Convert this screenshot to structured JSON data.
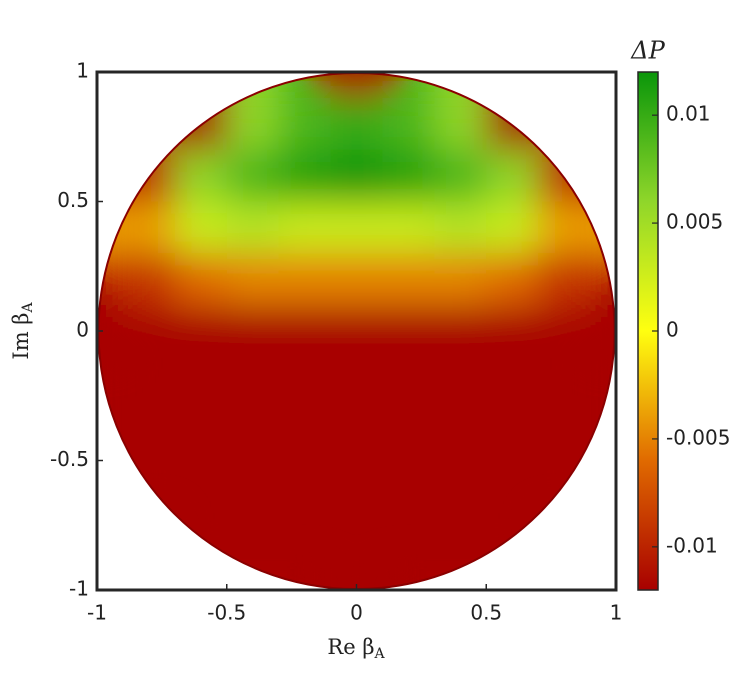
{
  "chart_data": {
    "type": "heatmap",
    "xlabel": {
      "text": "Re β",
      "sub": "A"
    },
    "ylabel": {
      "text": "Im β",
      "sub": "A"
    },
    "colorbar_label": "ΔP",
    "xlim": [
      -1,
      1
    ],
    "ylim": [
      -1,
      1
    ],
    "xticks": [
      -1,
      -0.5,
      0,
      0.5,
      1
    ],
    "yticks": [
      -1,
      -0.5,
      0,
      0.5,
      1
    ],
    "clim": [
      -0.012,
      0.012
    ],
    "cticks": [
      -0.01,
      -0.005,
      0,
      0.005,
      0.01
    ],
    "colormap": [
      "#a80000",
      "#e06a00",
      "#ffff10",
      "#8fd62a",
      "#0a960a"
    ],
    "x": [
      -1,
      -0.8,
      -0.6,
      -0.4,
      -0.2,
      0,
      0.2,
      0.4,
      0.6,
      0.8,
      1
    ],
    "y": [
      1,
      0.8,
      0.6,
      0.4,
      0.2,
      0,
      -0.2,
      -0.4,
      -0.6,
      -0.8,
      -1
    ],
    "z": [
      [
        null,
        null,
        null,
        null,
        null,
        -0.012,
        null,
        null,
        null,
        null,
        null
      ],
      [
        null,
        null,
        -0.012,
        0.006,
        0.009,
        0.01,
        0.009,
        0.006,
        -0.012,
        null,
        null
      ],
      [
        null,
        -0.01,
        0.006,
        0.009,
        0.011,
        0.012,
        0.011,
        0.009,
        0.006,
        -0.01,
        null
      ],
      [
        null,
        -0.004,
        0.003,
        0.004,
        0.003,
        0.003,
        0.003,
        0.004,
        0.003,
        -0.004,
        null
      ],
      [
        null,
        -0.009,
        -0.006,
        -0.005,
        -0.005,
        -0.005,
        -0.005,
        -0.005,
        -0.006,
        -0.009,
        null
      ],
      [
        -0.012,
        -0.012,
        -0.012,
        -0.012,
        -0.012,
        -0.012,
        -0.012,
        -0.012,
        -0.012,
        -0.012,
        -0.012
      ],
      [
        null,
        -0.012,
        -0.012,
        -0.012,
        -0.012,
        -0.012,
        -0.012,
        -0.012,
        -0.012,
        -0.012,
        null
      ],
      [
        null,
        -0.012,
        -0.012,
        -0.012,
        -0.012,
        -0.012,
        -0.012,
        -0.012,
        -0.012,
        -0.012,
        null
      ],
      [
        null,
        -0.012,
        -0.012,
        -0.012,
        -0.012,
        -0.012,
        -0.012,
        -0.012,
        -0.012,
        -0.012,
        null
      ],
      [
        null,
        null,
        -0.012,
        -0.012,
        -0.012,
        -0.012,
        -0.012,
        -0.012,
        -0.012,
        null,
        null
      ],
      [
        null,
        null,
        null,
        null,
        null,
        -0.012,
        null,
        null,
        null,
        null,
        null
      ]
    ]
  }
}
